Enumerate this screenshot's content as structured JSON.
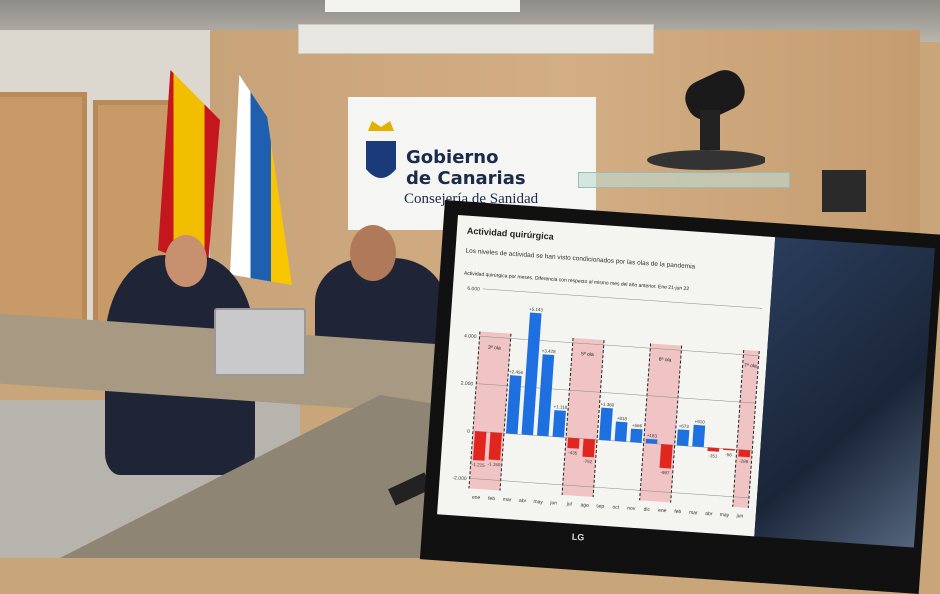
{
  "sign": {
    "line1": "Gobierno",
    "line2": "de Canarias",
    "line3": "Consejería de Sanidad"
  },
  "monitor": {
    "brand": "LG"
  },
  "slide": {
    "title": "Actividad quirúrgica",
    "subtitle": "Los niveles de actividad se han visto condicionados por las olas de la pandemia"
  },
  "chart_data": {
    "type": "bar",
    "title": "Actividad quirúrgica por meses. Diferencia con respecto al mismo mes del año anterior. Ene 21-jun 22",
    "categories": [
      "ene",
      "feb",
      "mar",
      "abr",
      "may",
      "jun",
      "jul",
      "ago",
      "sep",
      "oct",
      "nov",
      "dic",
      "ene",
      "feb",
      "mar",
      "abr",
      "may",
      "jun"
    ],
    "values": [
      -1215,
      -1150,
      2456,
      5143,
      3428,
      1118,
      -435,
      -752,
      1360,
      818,
      566,
      183,
      -997,
      673,
      910,
      -151,
      -56,
      -289
    ],
    "labels": [
      "-1.215",
      "-1.150",
      "+2.456",
      "+5.143",
      "+3.428",
      "+1.118",
      "-435",
      "-752",
      "+1.360",
      "+818",
      "+566",
      "+183",
      "-997",
      "+673",
      "+910",
      "-151",
      "-56",
      "-289"
    ],
    "yticks": [
      "-2.000",
      "0",
      "2.000",
      "4.000",
      "6.000"
    ],
    "ylim": [
      -2000,
      6000
    ],
    "waves": [
      {
        "label": "3ª ola",
        "from": 0,
        "to": 1
      },
      {
        "label": "5ª ola",
        "from": 6,
        "to": 7
      },
      {
        "label": "6ª ola",
        "from": 11,
        "to": 12
      },
      {
        "label": "7ª ola",
        "from": 17,
        "to": 17
      }
    ],
    "colors": {
      "positive": "#1e6fe0",
      "negative": "#e0261e",
      "wave": "#f0c4c4"
    },
    "grid": true
  }
}
